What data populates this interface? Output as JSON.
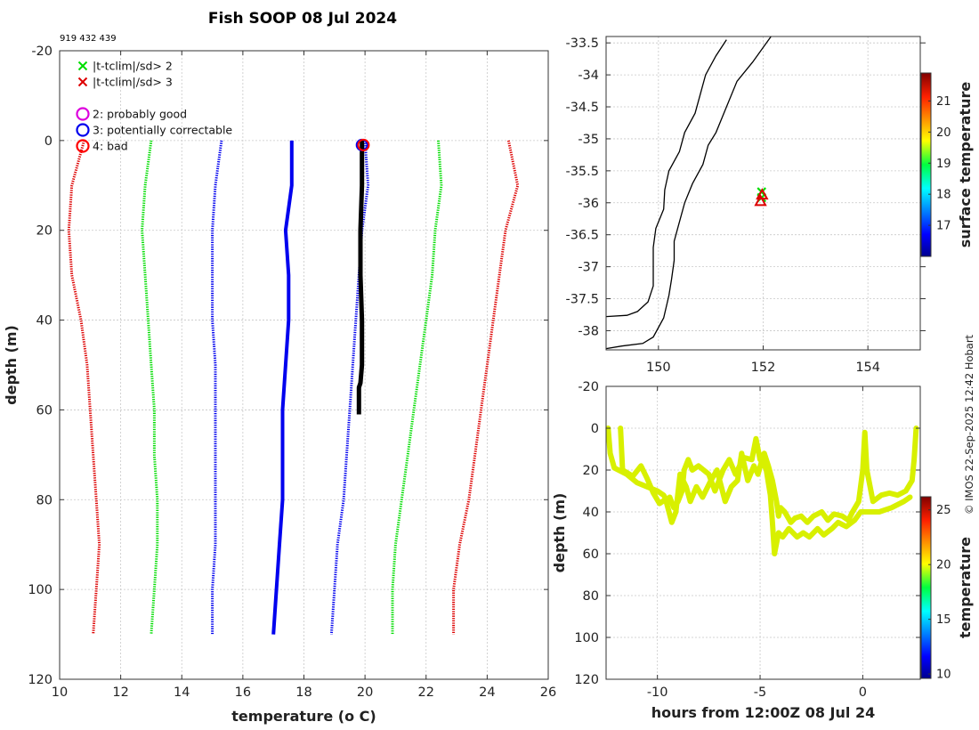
{
  "title": "Fish SOOP 08 Jul 2024",
  "id_text": "919 432 439",
  "credit": "© IMOS 22-Sep-2025 12:42 Hobart",
  "colors": {
    "sd2": "#00dd00",
    "sd3": "#dd0000",
    "blue": "#0000ee",
    "black": "#000000",
    "probably_good": "#dd00dd",
    "bad": "#ff0000",
    "grid": "#c8c8c8",
    "track": "#d8f000"
  },
  "chart_data": [
    {
      "id": "profile",
      "type": "line",
      "xlabel": "temperature (o C)",
      "ylabel": "depth (m)",
      "xlim": [
        10,
        26
      ],
      "ylim": [
        -20,
        120
      ],
      "xticks": [
        10,
        12,
        14,
        16,
        18,
        20,
        22,
        24,
        26
      ],
      "yticks": [
        -20,
        0,
        20,
        40,
        60,
        80,
        100,
        120
      ],
      "y_reversed": true,
      "grid": true,
      "legend": [
        {
          "marker": "x",
          "color": "sd2",
          "label": "|t-tclim|/sd> 2"
        },
        {
          "marker": "x",
          "color": "sd3",
          "label": "|t-tclim|/sd> 3"
        },
        {
          "marker": "o",
          "color": "probably_good",
          "label": "2: probably good"
        },
        {
          "marker": "o",
          "color": "blue",
          "label": "3: potentially correctable"
        },
        {
          "marker": "o",
          "color": "bad",
          "label": "4: bad"
        }
      ],
      "series": [
        {
          "name": "climatology -3sd",
          "color": "sd3",
          "style": "dotted",
          "points": [
            [
              10.8,
              0
            ],
            [
              10.4,
              10
            ],
            [
              10.3,
              20
            ],
            [
              10.4,
              30
            ],
            [
              10.7,
              40
            ],
            [
              10.9,
              50
            ],
            [
              11.0,
              60
            ],
            [
              11.1,
              70
            ],
            [
              11.2,
              80
            ],
            [
              11.3,
              90
            ],
            [
              11.2,
              100
            ],
            [
              11.1,
              110
            ]
          ]
        },
        {
          "name": "climatology -2sd",
          "color": "sd2",
          "style": "dotted",
          "points": [
            [
              13.0,
              0
            ],
            [
              12.8,
              10
            ],
            [
              12.7,
              20
            ],
            [
              12.8,
              30
            ],
            [
              12.9,
              40
            ],
            [
              13.0,
              50
            ],
            [
              13.1,
              60
            ],
            [
              13.1,
              70
            ],
            [
              13.2,
              80
            ],
            [
              13.2,
              90
            ],
            [
              13.1,
              100
            ],
            [
              13.0,
              110
            ]
          ]
        },
        {
          "name": "climatology -1sd",
          "color": "blue",
          "style": "dotted",
          "points": [
            [
              15.3,
              0
            ],
            [
              15.1,
              10
            ],
            [
              15.0,
              20
            ],
            [
              15.0,
              30
            ],
            [
              15.0,
              40
            ],
            [
              15.1,
              50
            ],
            [
              15.1,
              60
            ],
            [
              15.1,
              70
            ],
            [
              15.1,
              80
            ],
            [
              15.1,
              90
            ],
            [
              15.0,
              100
            ],
            [
              15.0,
              110
            ]
          ]
        },
        {
          "name": "climatology mean",
          "color": "blue",
          "style": "solid",
          "points": [
            [
              17.6,
              0
            ],
            [
              17.6,
              10
            ],
            [
              17.4,
              20
            ],
            [
              17.5,
              30
            ],
            [
              17.5,
              40
            ],
            [
              17.4,
              50
            ],
            [
              17.3,
              60
            ],
            [
              17.3,
              70
            ],
            [
              17.3,
              80
            ],
            [
              17.2,
              90
            ],
            [
              17.1,
              100
            ],
            [
              17.0,
              110
            ]
          ]
        },
        {
          "name": "climatology +1sd",
          "color": "blue",
          "style": "dotted",
          "points": [
            [
              20.0,
              0
            ],
            [
              20.1,
              10
            ],
            [
              19.9,
              20
            ],
            [
              19.8,
              30
            ],
            [
              19.7,
              40
            ],
            [
              19.6,
              50
            ],
            [
              19.5,
              60
            ],
            [
              19.4,
              70
            ],
            [
              19.3,
              80
            ],
            [
              19.1,
              90
            ],
            [
              19.0,
              100
            ],
            [
              18.9,
              110
            ]
          ]
        },
        {
          "name": "climatology +2sd",
          "color": "sd2",
          "style": "dotted",
          "points": [
            [
              22.4,
              0
            ],
            [
              22.5,
              10
            ],
            [
              22.3,
              20
            ],
            [
              22.2,
              30
            ],
            [
              22.0,
              40
            ],
            [
              21.8,
              50
            ],
            [
              21.6,
              60
            ],
            [
              21.4,
              70
            ],
            [
              21.2,
              80
            ],
            [
              21.0,
              90
            ],
            [
              20.9,
              100
            ],
            [
              20.9,
              110
            ]
          ]
        },
        {
          "name": "climatology +3sd",
          "color": "sd3",
          "style": "dotted",
          "points": [
            [
              24.7,
              0
            ],
            [
              25.0,
              10
            ],
            [
              24.6,
              20
            ],
            [
              24.4,
              30
            ],
            [
              24.2,
              40
            ],
            [
              24.0,
              50
            ],
            [
              23.8,
              60
            ],
            [
              23.6,
              70
            ],
            [
              23.4,
              80
            ],
            [
              23.1,
              90
            ],
            [
              22.9,
              100
            ],
            [
              22.9,
              110
            ]
          ]
        },
        {
          "name": "observed profile",
          "color": "black",
          "style": "thick",
          "points": [
            [
              19.9,
              0
            ],
            [
              19.9,
              5
            ],
            [
              19.9,
              10
            ],
            [
              19.85,
              20
            ],
            [
              19.85,
              30
            ],
            [
              19.9,
              40
            ],
            [
              19.9,
              50
            ],
            [
              19.85,
              54
            ],
            [
              19.8,
              55
            ],
            [
              19.8,
              61
            ]
          ]
        }
      ],
      "flag_markers": [
        {
          "flag": 3,
          "color": "blue",
          "temperature": 19.9,
          "depth": 1
        },
        {
          "flag": 4,
          "color": "bad",
          "temperature": 19.95,
          "depth": 1
        }
      ]
    },
    {
      "id": "map",
      "type": "scatter",
      "xlabel": "",
      "ylabel": "",
      "xlim": [
        149,
        155
      ],
      "ylim": [
        -38.3,
        -33.4
      ],
      "xticks": [
        150,
        152,
        154
      ],
      "yticks": [
        -33.5,
        -34,
        -34.5,
        -35,
        -35.5,
        -36,
        -36.5,
        -37,
        -37.5,
        -38
      ],
      "grid": true,
      "colorbar": {
        "label": "surface temperature",
        "range": [
          16.0,
          21.9
        ],
        "ticks": [
          17,
          18,
          19,
          20,
          21
        ]
      },
      "coastline": [
        [
          149,
          -37.78
        ],
        [
          149.4,
          -37.76
        ],
        [
          149.6,
          -37.7
        ],
        [
          149.8,
          -37.55
        ],
        [
          149.9,
          -37.3
        ],
        [
          149.9,
          -37.0
        ],
        [
          149.9,
          -36.7
        ],
        [
          149.95,
          -36.4
        ],
        [
          150.1,
          -36.1
        ],
        [
          150.12,
          -35.8
        ],
        [
          150.2,
          -35.5
        ],
        [
          150.4,
          -35.2
        ],
        [
          150.5,
          -34.9
        ],
        [
          150.7,
          -34.6
        ],
        [
          150.8,
          -34.3
        ],
        [
          150.9,
          -34.0
        ],
        [
          151.1,
          -33.7
        ],
        [
          151.3,
          -33.45
        ]
      ],
      "isobath": [
        [
          149,
          -38.28
        ],
        [
          149.3,
          -38.24
        ],
        [
          149.7,
          -38.2
        ],
        [
          149.9,
          -38.1
        ],
        [
          150.1,
          -37.8
        ],
        [
          150.2,
          -37.45
        ],
        [
          150.25,
          -37.2
        ],
        [
          150.3,
          -36.9
        ],
        [
          150.3,
          -36.6
        ],
        [
          150.4,
          -36.3
        ],
        [
          150.5,
          -36.0
        ],
        [
          150.65,
          -35.7
        ],
        [
          150.85,
          -35.4
        ],
        [
          150.95,
          -35.1
        ],
        [
          151.1,
          -34.9
        ],
        [
          151.3,
          -34.5
        ],
        [
          151.5,
          -34.1
        ],
        [
          151.8,
          -33.8
        ],
        [
          152.15,
          -33.4
        ]
      ],
      "points": [
        {
          "lon": 151.97,
          "lat": -35.92,
          "marker": "x",
          "color": "sd2"
        },
        {
          "lon": 151.97,
          "lat": -35.83,
          "marker": "x",
          "color": "sd2"
        },
        {
          "lon": 151.95,
          "lat": -35.98,
          "marker": "triangle",
          "color": "sd3"
        },
        {
          "lon": 151.98,
          "lat": -35.88,
          "marker": "triangle",
          "color": "sd3"
        }
      ]
    },
    {
      "id": "timeseries",
      "type": "scatter",
      "xlabel": "hours from 12:00Z 08 Jul 24",
      "ylabel": "depth (m)",
      "xlim": [
        -12.5,
        2.8
      ],
      "ylim": [
        -20,
        120
      ],
      "xticks": [
        -10,
        -5,
        0
      ],
      "yticks": [
        -20,
        0,
        20,
        40,
        60,
        80,
        100,
        120
      ],
      "y_reversed": true,
      "grid": true,
      "colorbar": {
        "label": "temperature",
        "range": [
          9.6,
          26.2
        ],
        "ticks": [
          10,
          15,
          20,
          25
        ]
      },
      "track": [
        [
          -12.4,
          0
        ],
        [
          -12.3,
          12
        ],
        [
          -12.1,
          19
        ],
        [
          -11.5,
          22
        ],
        [
          -11,
          26
        ],
        [
          -10.5,
          28
        ],
        [
          -10,
          30
        ],
        [
          -9.7,
          32
        ],
        [
          -9.5,
          35
        ],
        [
          -9.4,
          33
        ],
        [
          -9.2,
          38
        ],
        [
          -9,
          35
        ],
        [
          -8.8,
          30
        ],
        [
          -8.7,
          20
        ],
        [
          -8.5,
          15
        ],
        [
          -8.3,
          20
        ],
        [
          -8,
          18
        ],
        [
          -7.5,
          22
        ],
        [
          -7.2,
          30
        ],
        [
          -7,
          25
        ],
        [
          -6.8,
          20
        ],
        [
          -6.5,
          15
        ],
        [
          -6.2,
          22
        ],
        [
          -6,
          18
        ],
        [
          -5.8,
          14
        ],
        [
          -5.4,
          15
        ],
        [
          -5.2,
          5
        ],
        [
          -5,
          15
        ],
        [
          -4.8,
          12
        ],
        [
          -4.6,
          18
        ],
        [
          -4.4,
          25
        ],
        [
          -4.2,
          35
        ],
        [
          -4.1,
          42
        ],
        [
          -4,
          38
        ],
        [
          -3.8,
          40
        ],
        [
          -3.5,
          45
        ],
        [
          -3.3,
          43
        ],
        [
          -3,
          42
        ],
        [
          -2.7,
          45
        ],
        [
          -2.4,
          42
        ],
        [
          -2,
          40
        ],
        [
          -1.7,
          44
        ],
        [
          -1.4,
          41
        ],
        [
          -1,
          42
        ],
        [
          -0.7,
          44
        ],
        [
          -0.5,
          40
        ],
        [
          -0.2,
          35
        ],
        [
          0,
          20
        ],
        [
          0.1,
          2
        ],
        [
          0.2,
          20
        ],
        [
          0.5,
          35
        ],
        [
          0.9,
          32
        ],
        [
          1.3,
          31
        ],
        [
          1.7,
          32
        ],
        [
          2.1,
          30
        ],
        [
          2.4,
          25
        ],
        [
          2.5,
          15
        ],
        [
          2.6,
          0
        ]
      ],
      "track2": [
        [
          -11.8,
          0
        ],
        [
          -11.7,
          20
        ],
        [
          -11.2,
          23
        ],
        [
          -10.8,
          18
        ],
        [
          -10.5,
          24
        ],
        [
          -10.2,
          31
        ],
        [
          -9.9,
          36
        ],
        [
          -9.6,
          34
        ],
        [
          -9.3,
          45
        ],
        [
          -9.1,
          40
        ],
        [
          -8.9,
          22
        ],
        [
          -8.6,
          28
        ],
        [
          -8.4,
          35
        ],
        [
          -8.1,
          28
        ],
        [
          -7.8,
          33
        ],
        [
          -7.4,
          25
        ],
        [
          -7.1,
          20
        ],
        [
          -6.7,
          35
        ],
        [
          -6.4,
          28
        ],
        [
          -6.1,
          25
        ],
        [
          -5.9,
          12
        ],
        [
          -5.6,
          25
        ],
        [
          -5.3,
          18
        ],
        [
          -5.1,
          22
        ],
        [
          -4.9,
          15
        ],
        [
          -4.7,
          20
        ],
        [
          -4.5,
          32
        ],
        [
          -4.4,
          45
        ],
        [
          -4.3,
          60
        ],
        [
          -4.1,
          50
        ],
        [
          -3.9,
          52
        ],
        [
          -3.6,
          48
        ],
        [
          -3.2,
          52
        ],
        [
          -2.9,
          50
        ],
        [
          -2.6,
          52
        ],
        [
          -2.2,
          48
        ],
        [
          -1.9,
          51
        ],
        [
          -1.5,
          48
        ],
        [
          -1.2,
          45
        ],
        [
          -0.8,
          47
        ],
        [
          -0.4,
          44
        ],
        [
          -0.1,
          40
        ],
        [
          0.3,
          40
        ],
        [
          0.8,
          40
        ],
        [
          1.4,
          38
        ],
        [
          2.0,
          35
        ],
        [
          2.3,
          33
        ]
      ]
    }
  ]
}
